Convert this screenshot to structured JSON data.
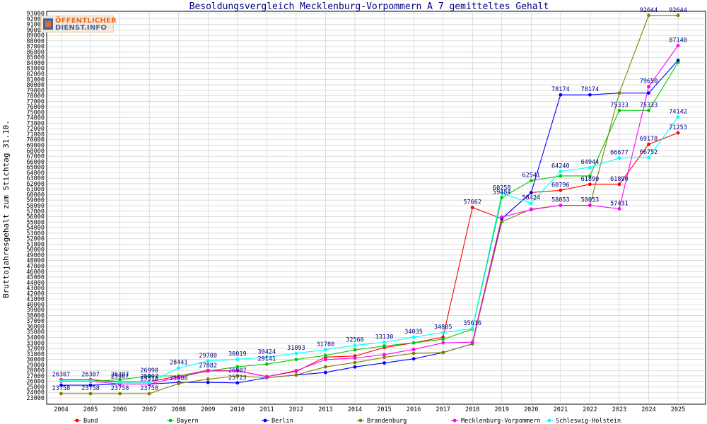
{
  "logo": {
    "line1": "ÖFFENTLICHER",
    "line2": "DIENST.INFO"
  },
  "chart_data": {
    "type": "line",
    "title": "Besoldungsvergleich Mecklenburg-Vorpommern A 7 gemitteltes Gehalt",
    "xlabel": "",
    "ylabel": "Bruttojahresgehalt zum Stichtag 31.10.",
    "ylim": [
      23000,
      93000
    ],
    "ytick_step": 1000,
    "grid": true,
    "legend_position": "bottom",
    "categories": [
      "2004",
      "2005",
      "2006",
      "2007",
      "2008",
      "2009",
      "2010",
      "2011",
      "2012",
      "2013",
      "2014",
      "2015",
      "2016",
      "2017",
      "2018",
      "2019",
      "2020",
      "2021",
      "2022",
      "2023",
      "2024",
      "2025"
    ],
    "series": [
      {
        "name": "Bund",
        "color": "#ff0000",
        "values": [
          26307,
          26307,
          25907,
          25907,
          27000,
          28000,
          27917,
          26869,
          27818,
          30427,
          30624,
          32159,
          33016,
          34035,
          57662,
          55633,
          60378,
          60796,
          61890,
          61890,
          69178,
          71253
        ],
        "labels": [
          "26307",
          "26307",
          "25907",
          "25907",
          "",
          "",
          "",
          "",
          "",
          "",
          "",
          "",
          "",
          "",
          "57662",
          "",
          "",
          "60796",
          "61890",
          "61890",
          "69178",
          "71253"
        ]
      },
      {
        "name": "Bayern",
        "color": "#00cc00",
        "values": [
          26030,
          26030,
          26307,
          26990,
          26990,
          27882,
          28659,
          29141,
          29988,
          30727,
          31740,
          32459,
          33016,
          33670,
          35506,
          59484,
          62541,
          63413,
          63413,
          75333,
          75333,
          84051
        ],
        "labels": [
          "",
          "",
          "26307",
          "26990",
          "",
          "27882",
          "",
          "29141",
          "",
          "",
          "",
          "",
          "",
          "",
          "",
          "59484",
          "62541",
          "",
          "",
          "75333",
          "75333",
          ""
        ]
      },
      {
        "name": "Berlin",
        "color": "#0000ff",
        "values": [
          25308,
          25308,
          25518,
          25518,
          25806,
          25806,
          25723,
          26667,
          27156,
          27616,
          28624,
          29357,
          30108,
          31252,
          32845,
          55634,
          60358,
          78174,
          78174,
          78496,
          78496,
          84462
        ],
        "labels": [
          "",
          "",
          "",
          "25518",
          "",
          "",
          "25723",
          "",
          "",
          "",
          "",
          "",
          "",
          "",
          "",
          "",
          "",
          "78174",
          "78174",
          "",
          "",
          ""
        ]
      },
      {
        "name": "Brandenburg",
        "color": "#808000",
        "values": [
          23758,
          23758,
          23758,
          23758,
          25600,
          26400,
          26987,
          26667,
          27156,
          28631,
          29424,
          30375,
          31121,
          31252,
          32845,
          55053,
          57363,
          58053,
          58053,
          78496,
          92644,
          92644
        ],
        "labels": [
          "23758",
          "23758",
          "23758",
          "23758",
          "25600",
          "",
          "26987",
          "",
          "",
          "",
          "",
          "",
          "",
          "",
          "",
          "",
          "",
          "",
          "",
          "",
          "92644",
          "92644"
        ]
      },
      {
        "name": "Mecklenburg-Vorpommern",
        "color": "#ff00ff",
        "values": [
          26030,
          26030,
          25518,
          25518,
          26741,
          27884,
          27917,
          26869,
          27956,
          29966,
          30240,
          30875,
          31821,
          33016,
          33145,
          55929,
          57263,
          58053,
          58053,
          57431,
          79650,
          87140
        ],
        "labels": [
          "",
          "",
          "",
          "",
          "",
          "",
          "",
          "",
          "",
          "",
          "",
          "",
          "",
          "",
          "",
          "",
          "",
          "58053",
          "58053",
          "57431",
          "79650",
          "87140"
        ]
      },
      {
        "name": "Schleswig-Holstein",
        "color": "#00ffff",
        "values": [
          26102,
          26102,
          25818,
          25818,
          28441,
          29700,
          30019,
          30424,
          31093,
          31780,
          32560,
          33130,
          34035,
          34885,
          35616,
          60258,
          58424,
          64240,
          64944,
          66677,
          66752,
          74142
        ],
        "labels": [
          "",
          "",
          "",
          "",
          "28441",
          "29700",
          "30019",
          "30424",
          "31093",
          "31780",
          "32560",
          "33130",
          "34035",
          "34885",
          "35616",
          "60258",
          "58424",
          "64240",
          "64944",
          "66677",
          "66752",
          "74142"
        ]
      }
    ]
  }
}
